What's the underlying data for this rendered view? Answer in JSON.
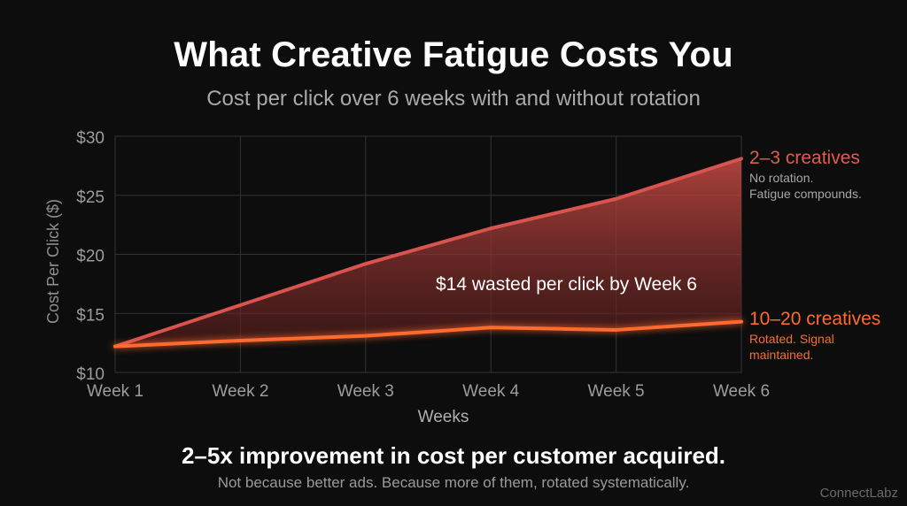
{
  "title": "What Creative Fatigue Costs You",
  "subtitle": "Cost per click over 6 weeks with and without rotation",
  "chart_data": {
    "type": "area",
    "categories": [
      "Week 1",
      "Week 2",
      "Week 3",
      "Week 4",
      "Week 5",
      "Week 6"
    ],
    "series": [
      {
        "name": "2–3 creatives",
        "note_lines": [
          "No rotation.",
          "Fatigue compounds."
        ],
        "values": [
          12.2,
          15.7,
          19.2,
          22.2,
          24.7,
          28.1
        ],
        "color": "#d9534f"
      },
      {
        "name": "10–20 creatives",
        "note_lines": [
          "Rotated. Signal",
          "maintained."
        ],
        "values": [
          12.2,
          12.7,
          13.1,
          13.8,
          13.6,
          14.3
        ],
        "color": "#ff6a2e"
      }
    ],
    "xlabel": "Weeks",
    "ylabel": "Cost Per Click ($)",
    "yticks": [
      10,
      15,
      20,
      25,
      30
    ],
    "ytick_labels": [
      "$10",
      "$15",
      "$20",
      "$25",
      "$30"
    ],
    "ylim": [
      10,
      30
    ],
    "grid": true,
    "annotation": "$14 wasted per click by Week 6"
  },
  "takeaway": "2–5x improvement in cost per customer acquired.",
  "takeaway_sub": "Not because better ads. Because more of them, rotated systematically.",
  "watermark": "ConnectLabz"
}
